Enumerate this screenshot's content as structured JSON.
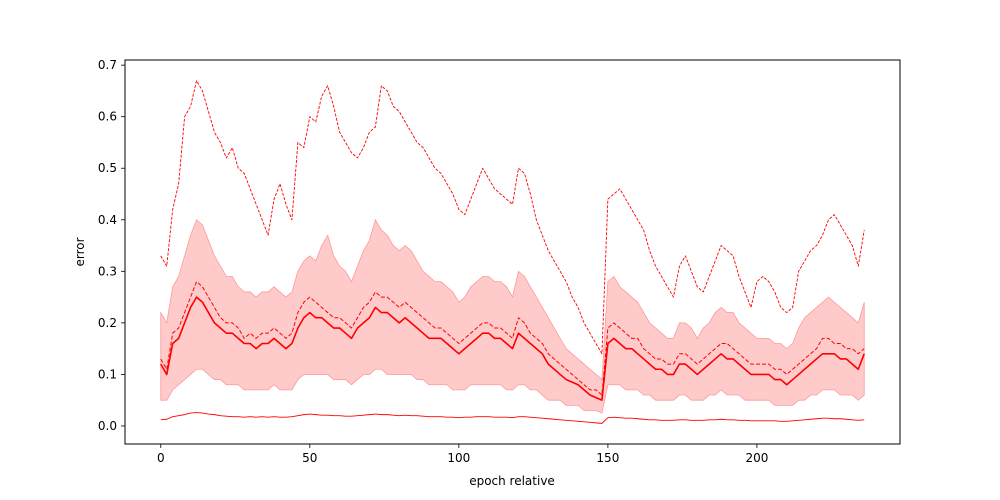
{
  "chart_data": {
    "type": "line",
    "title": "",
    "xlabel": "epoch relative",
    "ylabel": "error",
    "xlim": [
      -12,
      248
    ],
    "ylim": [
      -0.035,
      0.71
    ],
    "xticks": [
      0,
      50,
      100,
      150,
      200
    ],
    "xtick_labels": [
      "0",
      "50",
      "100",
      "150",
      "200"
    ],
    "yticks": [
      0.0,
      0.1,
      0.2,
      0.3,
      0.4,
      0.5,
      0.6,
      0.7
    ],
    "ytick_labels": [
      "0.0",
      "0.1",
      "0.2",
      "0.3",
      "0.4",
      "0.5",
      "0.6",
      "0.7"
    ],
    "grid": false,
    "legend": false,
    "colors": {
      "line": "#ff0000",
      "band": "#ffb3b3",
      "band_edge": "#ff9999"
    },
    "x": [
      0,
      2,
      4,
      6,
      8,
      10,
      12,
      14,
      16,
      18,
      20,
      22,
      24,
      26,
      28,
      30,
      32,
      34,
      36,
      38,
      40,
      42,
      44,
      46,
      48,
      50,
      52,
      54,
      56,
      58,
      60,
      62,
      64,
      66,
      68,
      70,
      72,
      74,
      76,
      78,
      80,
      82,
      84,
      86,
      88,
      90,
      92,
      94,
      96,
      98,
      100,
      102,
      104,
      106,
      108,
      110,
      112,
      114,
      116,
      118,
      120,
      122,
      124,
      126,
      128,
      130,
      132,
      134,
      136,
      138,
      140,
      142,
      144,
      146,
      148,
      150,
      152,
      154,
      156,
      158,
      160,
      162,
      164,
      166,
      168,
      170,
      172,
      174,
      176,
      178,
      180,
      182,
      184,
      186,
      188,
      190,
      192,
      194,
      196,
      198,
      200,
      202,
      204,
      206,
      208,
      210,
      212,
      214,
      216,
      218,
      220,
      222,
      224,
      226,
      228,
      230,
      232,
      234,
      236
    ],
    "series": [
      {
        "role": "max",
        "style": "dashed",
        "values": [
          0.33,
          0.31,
          0.42,
          0.47,
          0.6,
          0.62,
          0.67,
          0.65,
          0.61,
          0.57,
          0.55,
          0.52,
          0.54,
          0.5,
          0.49,
          0.46,
          0.43,
          0.4,
          0.37,
          0.44,
          0.47,
          0.43,
          0.4,
          0.55,
          0.54,
          0.6,
          0.59,
          0.64,
          0.66,
          0.62,
          0.57,
          0.55,
          0.53,
          0.52,
          0.54,
          0.57,
          0.58,
          0.66,
          0.65,
          0.62,
          0.61,
          0.59,
          0.57,
          0.55,
          0.54,
          0.52,
          0.5,
          0.49,
          0.47,
          0.45,
          0.42,
          0.41,
          0.44,
          0.47,
          0.5,
          0.48,
          0.46,
          0.45,
          0.44,
          0.43,
          0.5,
          0.49,
          0.45,
          0.4,
          0.37,
          0.34,
          0.32,
          0.3,
          0.28,
          0.25,
          0.23,
          0.2,
          0.18,
          0.16,
          0.14,
          0.44,
          0.45,
          0.46,
          0.44,
          0.42,
          0.4,
          0.38,
          0.34,
          0.31,
          0.29,
          0.27,
          0.25,
          0.31,
          0.33,
          0.3,
          0.27,
          0.26,
          0.29,
          0.32,
          0.35,
          0.34,
          0.33,
          0.29,
          0.26,
          0.23,
          0.28,
          0.29,
          0.28,
          0.26,
          0.23,
          0.22,
          0.23,
          0.3,
          0.32,
          0.34,
          0.35,
          0.37,
          0.4,
          0.41,
          0.39,
          0.37,
          0.35,
          0.31,
          0.38
        ]
      },
      {
        "role": "upper",
        "style": "dashed",
        "values": [
          0.13,
          0.11,
          0.18,
          0.19,
          0.22,
          0.25,
          0.28,
          0.27,
          0.25,
          0.23,
          0.21,
          0.2,
          0.2,
          0.19,
          0.17,
          0.18,
          0.17,
          0.18,
          0.18,
          0.19,
          0.18,
          0.17,
          0.18,
          0.22,
          0.24,
          0.25,
          0.24,
          0.23,
          0.22,
          0.21,
          0.21,
          0.2,
          0.19,
          0.21,
          0.23,
          0.24,
          0.26,
          0.25,
          0.25,
          0.24,
          0.23,
          0.24,
          0.23,
          0.22,
          0.21,
          0.2,
          0.19,
          0.19,
          0.18,
          0.17,
          0.16,
          0.17,
          0.18,
          0.19,
          0.2,
          0.2,
          0.19,
          0.19,
          0.18,
          0.17,
          0.21,
          0.2,
          0.18,
          0.17,
          0.16,
          0.14,
          0.13,
          0.12,
          0.11,
          0.1,
          0.09,
          0.08,
          0.07,
          0.07,
          0.06,
          0.19,
          0.2,
          0.19,
          0.18,
          0.17,
          0.17,
          0.15,
          0.14,
          0.13,
          0.13,
          0.12,
          0.12,
          0.14,
          0.14,
          0.13,
          0.12,
          0.13,
          0.14,
          0.15,
          0.16,
          0.16,
          0.15,
          0.14,
          0.13,
          0.12,
          0.12,
          0.12,
          0.12,
          0.11,
          0.11,
          0.1,
          0.11,
          0.12,
          0.13,
          0.14,
          0.15,
          0.17,
          0.17,
          0.16,
          0.16,
          0.15,
          0.15,
          0.14,
          0.15
        ]
      },
      {
        "role": "mean",
        "style": "solid-bold",
        "values": [
          0.12,
          0.1,
          0.16,
          0.17,
          0.2,
          0.23,
          0.25,
          0.24,
          0.22,
          0.2,
          0.19,
          0.18,
          0.18,
          0.17,
          0.16,
          0.16,
          0.15,
          0.16,
          0.16,
          0.17,
          0.16,
          0.15,
          0.16,
          0.19,
          0.21,
          0.22,
          0.21,
          0.21,
          0.2,
          0.19,
          0.19,
          0.18,
          0.17,
          0.19,
          0.2,
          0.21,
          0.23,
          0.22,
          0.22,
          0.21,
          0.2,
          0.21,
          0.2,
          0.19,
          0.18,
          0.17,
          0.17,
          0.17,
          0.16,
          0.15,
          0.14,
          0.15,
          0.16,
          0.17,
          0.18,
          0.18,
          0.17,
          0.17,
          0.16,
          0.15,
          0.18,
          0.17,
          0.16,
          0.15,
          0.14,
          0.12,
          0.11,
          0.1,
          0.09,
          0.085,
          0.08,
          0.07,
          0.06,
          0.055,
          0.05,
          0.16,
          0.17,
          0.16,
          0.15,
          0.15,
          0.14,
          0.13,
          0.12,
          0.11,
          0.11,
          0.1,
          0.1,
          0.12,
          0.12,
          0.11,
          0.1,
          0.11,
          0.12,
          0.13,
          0.14,
          0.13,
          0.13,
          0.12,
          0.11,
          0.1,
          0.1,
          0.1,
          0.1,
          0.09,
          0.09,
          0.08,
          0.09,
          0.1,
          0.11,
          0.12,
          0.13,
          0.14,
          0.14,
          0.14,
          0.13,
          0.13,
          0.12,
          0.11,
          0.14
        ]
      },
      {
        "role": "band_upper",
        "style": "fill",
        "values": [
          0.22,
          0.2,
          0.27,
          0.29,
          0.33,
          0.37,
          0.4,
          0.39,
          0.36,
          0.33,
          0.31,
          0.29,
          0.29,
          0.27,
          0.26,
          0.26,
          0.25,
          0.26,
          0.26,
          0.27,
          0.26,
          0.25,
          0.26,
          0.3,
          0.32,
          0.33,
          0.32,
          0.35,
          0.37,
          0.33,
          0.31,
          0.3,
          0.28,
          0.31,
          0.34,
          0.36,
          0.4,
          0.38,
          0.37,
          0.35,
          0.34,
          0.35,
          0.34,
          0.32,
          0.3,
          0.29,
          0.28,
          0.28,
          0.27,
          0.26,
          0.24,
          0.25,
          0.27,
          0.28,
          0.29,
          0.29,
          0.28,
          0.28,
          0.27,
          0.25,
          0.3,
          0.29,
          0.27,
          0.25,
          0.23,
          0.21,
          0.19,
          0.17,
          0.15,
          0.14,
          0.13,
          0.12,
          0.11,
          0.1,
          0.09,
          0.28,
          0.29,
          0.27,
          0.26,
          0.25,
          0.24,
          0.22,
          0.2,
          0.19,
          0.18,
          0.17,
          0.17,
          0.2,
          0.2,
          0.19,
          0.17,
          0.19,
          0.2,
          0.22,
          0.23,
          0.22,
          0.22,
          0.2,
          0.19,
          0.18,
          0.17,
          0.17,
          0.17,
          0.16,
          0.16,
          0.15,
          0.16,
          0.19,
          0.21,
          0.22,
          0.23,
          0.24,
          0.25,
          0.24,
          0.23,
          0.22,
          0.21,
          0.2,
          0.24
        ]
      },
      {
        "role": "band_lower",
        "style": "fill",
        "values": [
          0.05,
          0.05,
          0.07,
          0.08,
          0.09,
          0.1,
          0.11,
          0.11,
          0.1,
          0.09,
          0.09,
          0.08,
          0.08,
          0.08,
          0.07,
          0.07,
          0.07,
          0.07,
          0.07,
          0.08,
          0.07,
          0.07,
          0.07,
          0.09,
          0.1,
          0.1,
          0.1,
          0.1,
          0.1,
          0.09,
          0.09,
          0.09,
          0.08,
          0.09,
          0.1,
          0.1,
          0.11,
          0.11,
          0.1,
          0.1,
          0.1,
          0.1,
          0.1,
          0.09,
          0.09,
          0.08,
          0.08,
          0.08,
          0.08,
          0.07,
          0.07,
          0.07,
          0.08,
          0.08,
          0.08,
          0.08,
          0.08,
          0.08,
          0.07,
          0.07,
          0.08,
          0.08,
          0.07,
          0.07,
          0.06,
          0.05,
          0.05,
          0.05,
          0.04,
          0.04,
          0.04,
          0.03,
          0.03,
          0.03,
          0.025,
          0.08,
          0.08,
          0.08,
          0.07,
          0.07,
          0.07,
          0.06,
          0.06,
          0.05,
          0.05,
          0.05,
          0.05,
          0.06,
          0.06,
          0.05,
          0.05,
          0.05,
          0.06,
          0.06,
          0.07,
          0.06,
          0.06,
          0.06,
          0.05,
          0.05,
          0.05,
          0.05,
          0.05,
          0.04,
          0.04,
          0.04,
          0.04,
          0.05,
          0.05,
          0.06,
          0.06,
          0.07,
          0.07,
          0.07,
          0.06,
          0.06,
          0.06,
          0.05,
          0.06
        ]
      },
      {
        "role": "min",
        "style": "solid",
        "values": [
          0.012,
          0.013,
          0.018,
          0.02,
          0.022,
          0.025,
          0.026,
          0.025,
          0.023,
          0.022,
          0.02,
          0.019,
          0.018,
          0.018,
          0.017,
          0.018,
          0.017,
          0.018,
          0.017,
          0.018,
          0.017,
          0.017,
          0.018,
          0.02,
          0.022,
          0.023,
          0.022,
          0.021,
          0.021,
          0.02,
          0.02,
          0.019,
          0.019,
          0.02,
          0.021,
          0.022,
          0.023,
          0.022,
          0.022,
          0.021,
          0.02,
          0.021,
          0.02,
          0.02,
          0.019,
          0.018,
          0.018,
          0.018,
          0.017,
          0.017,
          0.016,
          0.017,
          0.017,
          0.018,
          0.018,
          0.018,
          0.017,
          0.017,
          0.017,
          0.016,
          0.018,
          0.018,
          0.017,
          0.016,
          0.015,
          0.014,
          0.013,
          0.012,
          0.011,
          0.01,
          0.009,
          0.008,
          0.007,
          0.006,
          0.005,
          0.016,
          0.017,
          0.016,
          0.015,
          0.015,
          0.014,
          0.013,
          0.012,
          0.012,
          0.011,
          0.011,
          0.011,
          0.012,
          0.012,
          0.011,
          0.011,
          0.011,
          0.012,
          0.012,
          0.013,
          0.012,
          0.012,
          0.011,
          0.011,
          0.01,
          0.01,
          0.01,
          0.01,
          0.01,
          0.009,
          0.009,
          0.01,
          0.011,
          0.012,
          0.013,
          0.014,
          0.015,
          0.015,
          0.014,
          0.014,
          0.013,
          0.012,
          0.011,
          0.012
        ]
      }
    ]
  }
}
